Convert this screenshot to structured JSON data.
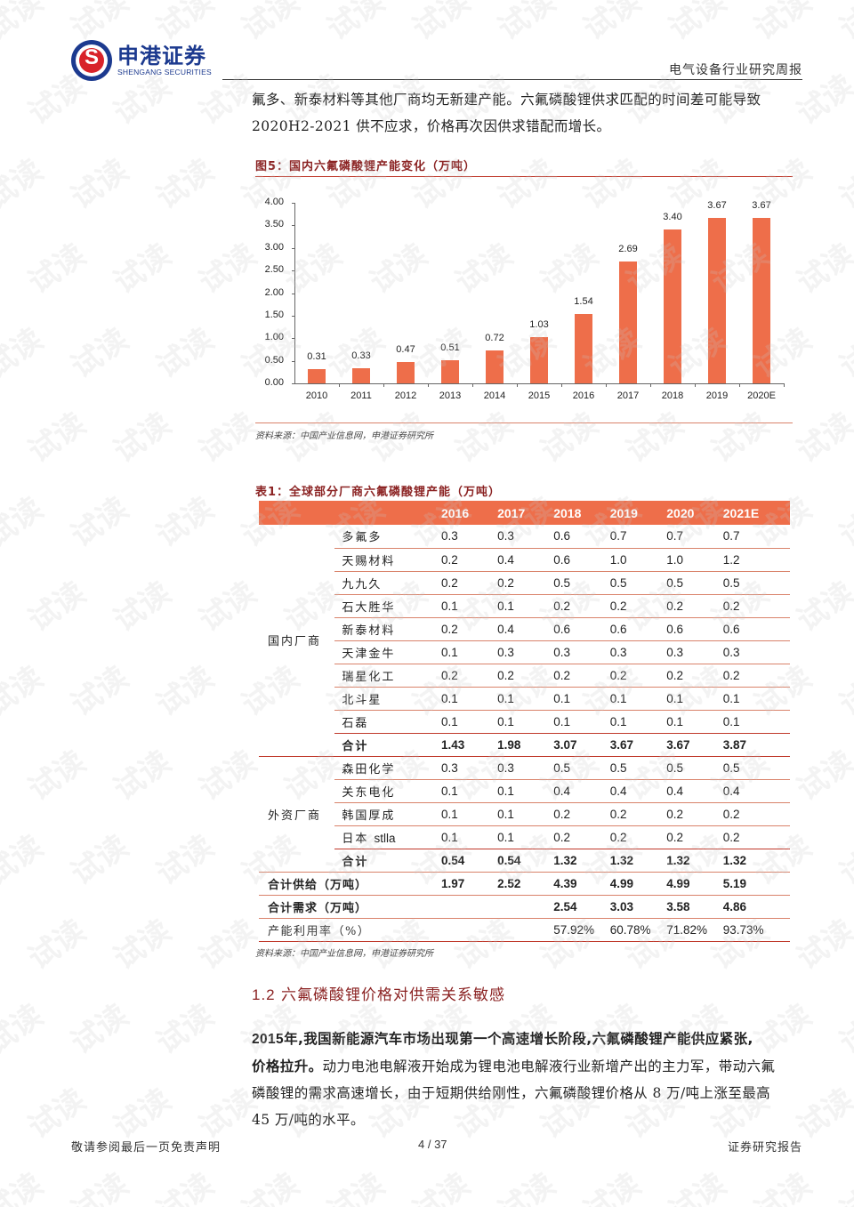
{
  "header": {
    "logo_cn": "申港证券",
    "logo_en": "SHENGANG SECURITIES",
    "report_type": "电气设备行业研究周报"
  },
  "intro": {
    "line1": "氟多、新泰材料等其他厂商均无新建产能。六氟磷酸锂供求匹配的时间差可能导致",
    "line2": "2020H2-2021 供不应求，价格再次因供求错配而增长。"
  },
  "figure": {
    "title": "图5：国内六氟磷酸锂产能变化（万吨）",
    "source": "资料来源：中国产业信息网，申港证券研究所",
    "bar_color": "#ee6e4a"
  },
  "chart_data": {
    "type": "bar",
    "title": "国内六氟磷酸锂产能变化（万吨）",
    "categories": [
      "2010",
      "2011",
      "2012",
      "2013",
      "2014",
      "2015",
      "2016",
      "2017",
      "2018",
      "2019",
      "2020E"
    ],
    "values": [
      0.31,
      0.33,
      0.47,
      0.51,
      0.72,
      1.03,
      1.54,
      2.69,
      3.4,
      3.67,
      3.67
    ],
    "value_labels": [
      "0.31",
      "0.33",
      "0.47",
      "0.51",
      "0.72",
      "1.03",
      "1.54",
      "2.69",
      "3.40",
      "3.67",
      "3.67"
    ],
    "yticks": [
      "4.00",
      "3.50",
      "3.00",
      "2.50",
      "2.00",
      "1.50",
      "1.00",
      "0.50",
      "0.00"
    ],
    "xlabel": "",
    "ylabel": "",
    "ylim": [
      0,
      4
    ],
    "grid": false,
    "legend": "none",
    "color": "#ee6e4a"
  },
  "table": {
    "title": "表1：全球部分厂商六氟磷酸锂产能（万吨）",
    "source": "资料来源：中国产业信息网，申港证券研究所",
    "columns": [
      "2016",
      "2017",
      "2018",
      "2019",
      "2020",
      "2021E"
    ],
    "groups": [
      {
        "label": "国内厂商",
        "rows": [
          {
            "name": "多氟多",
            "values": [
              "0.3",
              "0.3",
              "0.6",
              "0.7",
              "0.7",
              "0.7"
            ]
          },
          {
            "name": "天赐材料",
            "values": [
              "0.2",
              "0.4",
              "0.6",
              "1.0",
              "1.0",
              "1.2"
            ]
          },
          {
            "name": "九九久",
            "values": [
              "0.2",
              "0.2",
              "0.5",
              "0.5",
              "0.5",
              "0.5"
            ]
          },
          {
            "name": "石大胜华",
            "values": [
              "0.1",
              "0.1",
              "0.2",
              "0.2",
              "0.2",
              "0.2"
            ]
          },
          {
            "name": "新泰材料",
            "values": [
              "0.2",
              "0.4",
              "0.6",
              "0.6",
              "0.6",
              "0.6"
            ]
          },
          {
            "name": "天津金牛",
            "values": [
              "0.1",
              "0.3",
              "0.3",
              "0.3",
              "0.3",
              "0.3"
            ]
          },
          {
            "name": "瑞星化工",
            "values": [
              "0.2",
              "0.2",
              "0.2",
              "0.2",
              "0.2",
              "0.2"
            ]
          },
          {
            "name": "北斗星",
            "values": [
              "0.1",
              "0.1",
              "0.1",
              "0.1",
              "0.1",
              "0.1"
            ]
          },
          {
            "name": "石磊",
            "values": [
              "0.1",
              "0.1",
              "0.1",
              "0.1",
              "0.1",
              "0.1"
            ]
          }
        ],
        "subtotal": {
          "name": "合计",
          "values": [
            "1.43",
            "1.98",
            "3.07",
            "3.67",
            "3.67",
            "3.87"
          ]
        }
      },
      {
        "label": "外资厂商",
        "rows": [
          {
            "name": "森田化学",
            "values": [
              "0.3",
              "0.3",
              "0.5",
              "0.5",
              "0.5",
              "0.5"
            ]
          },
          {
            "name": "关东电化",
            "values": [
              "0.1",
              "0.1",
              "0.4",
              "0.4",
              "0.4",
              "0.4"
            ]
          },
          {
            "name": "韩国厚成",
            "values": [
              "0.1",
              "0.1",
              "0.2",
              "0.2",
              "0.2",
              "0.2"
            ]
          },
          {
            "name_cn": "日本",
            "name_lat": "stlla",
            "values": [
              "0.1",
              "0.1",
              "0.2",
              "0.2",
              "0.2",
              "0.2"
            ]
          }
        ],
        "subtotal": {
          "name": "合计",
          "values": [
            "0.54",
            "0.54",
            "1.32",
            "1.32",
            "1.32",
            "1.32"
          ]
        }
      }
    ],
    "totals": [
      {
        "name": "合计供给（万吨）",
        "values": [
          "1.97",
          "2.52",
          "4.39",
          "4.99",
          "4.99",
          "5.19"
        ]
      },
      {
        "name": "合计需求（万吨）",
        "values": [
          "",
          "",
          "2.54",
          "3.03",
          "3.58",
          "4.86"
        ]
      },
      {
        "name": "产能利用率（%）",
        "values": [
          "",
          "",
          "57.92%",
          "60.78%",
          "71.82%",
          "93.73%"
        ]
      }
    ]
  },
  "section": {
    "number": "1.2",
    "title": "六氟磷酸锂价格对供需关系敏感"
  },
  "body": {
    "bold_part1_num": "2015",
    "bold_part1_text": "年,我国新能源汽车市场出现第一个高速增长阶段,六氟磷酸锂产能供应紧张,",
    "bold_part2": "价格拉升。",
    "line2_rest": "动力电池电解液开始成为锂电池电解液行业新增产出的主力军，带动六氟",
    "line3": "磷酸锂的需求高速增长，由于短期供给刚性，六氟磷酸锂价格从 8 万/吨上涨至最高",
    "line4": "45 万/吨的水平。"
  },
  "footer": {
    "disclaimer": "敬请参阅最后一页免责声明",
    "page": "4 / 37",
    "doc_type": "证券研究报告"
  },
  "watermark": "试读"
}
